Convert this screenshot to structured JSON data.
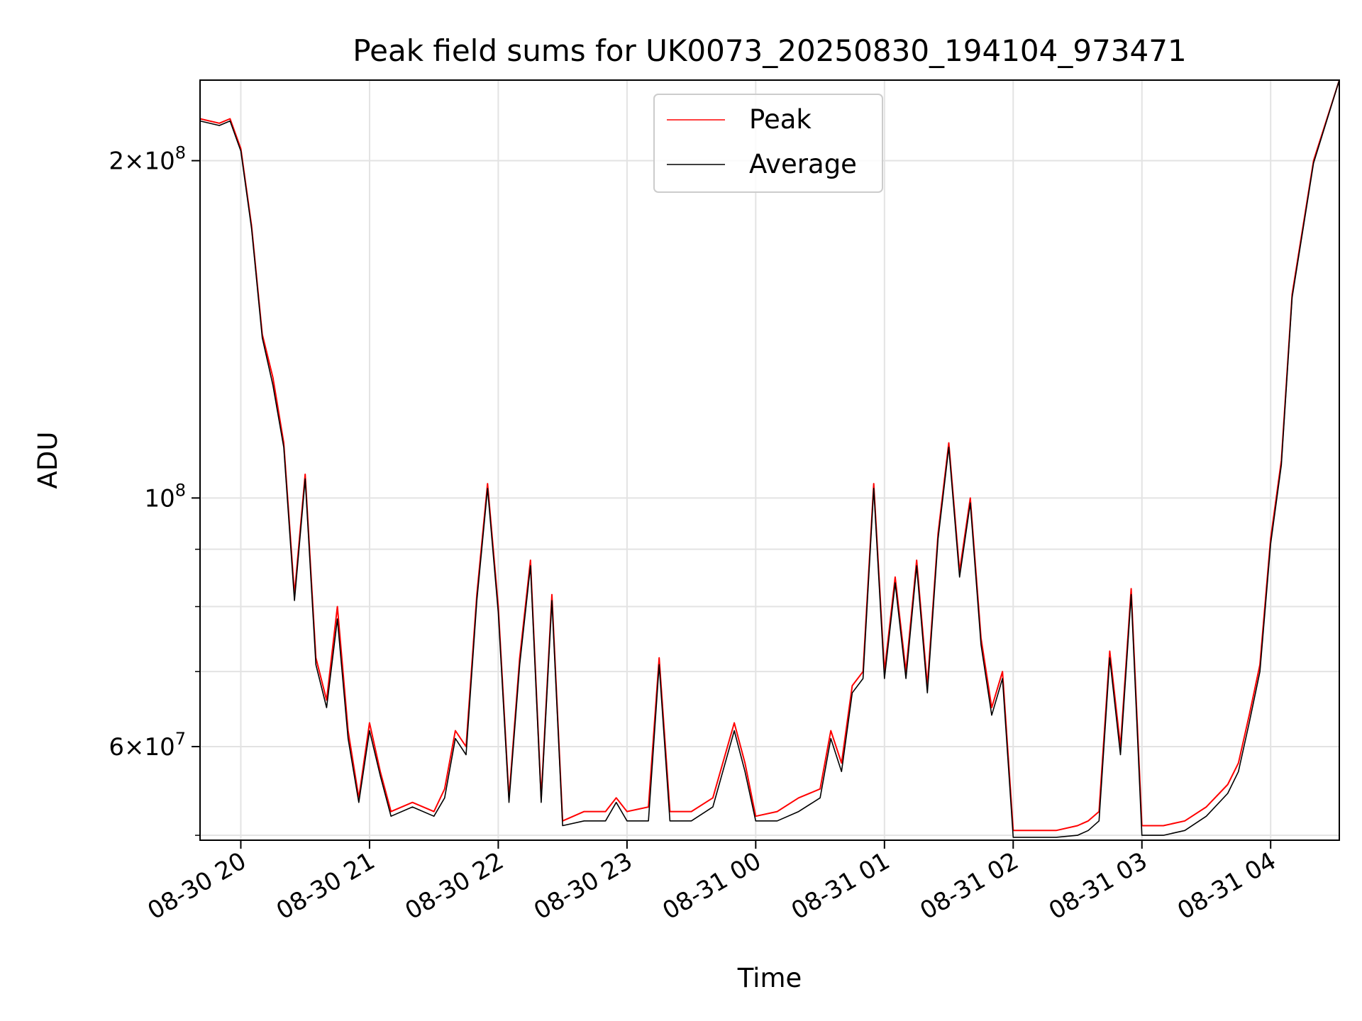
{
  "chart_data": {
    "type": "line",
    "title": "Peak field sums for UK0073_20250830_194104_973471",
    "xlabel": "Time",
    "ylabel": "ADU",
    "yscale": "log",
    "grid": true,
    "legend": {
      "placement": "upper center"
    },
    "x_range": [
      "2025-08-30 19:41",
      "2025-08-31 04:32"
    ],
    "ylim": [
      49500000,
      236000000
    ],
    "x_ticks": [
      {
        "label": "08-30 20",
        "time": "2025-08-30 20:00"
      },
      {
        "label": "08-30 21",
        "time": "2025-08-30 21:00"
      },
      {
        "label": "08-30 22",
        "time": "2025-08-30 22:00"
      },
      {
        "label": "08-30 23",
        "time": "2025-08-30 23:00"
      },
      {
        "label": "08-31 00",
        "time": "2025-08-31 00:00"
      },
      {
        "label": "08-31 01",
        "time": "2025-08-31 01:00"
      },
      {
        "label": "08-31 02",
        "time": "2025-08-31 02:00"
      },
      {
        "label": "08-31 03",
        "time": "2025-08-31 03:00"
      },
      {
        "label": "08-31 04",
        "time": "2025-08-31 04:00"
      }
    ],
    "y_major_ticks": [
      {
        "value": 60000000,
        "base": "6",
        "exp": "7"
      },
      {
        "value": 100000000,
        "base": "",
        "exp": "8"
      },
      {
        "value": 200000000,
        "base": "2",
        "exp": "8"
      }
    ],
    "y_minor_ticks": [
      50000000,
      70000000,
      80000000,
      90000000
    ],
    "series": [
      {
        "name": "Peak",
        "color": "#ff0000",
        "time": [
          "2025-08-30 19:41",
          "2025-08-30 19:50",
          "2025-08-30 19:55",
          "2025-08-30 20:00",
          "2025-08-30 20:05",
          "2025-08-30 20:10",
          "2025-08-30 20:15",
          "2025-08-30 20:20",
          "2025-08-30 20:25",
          "2025-08-30 20:30",
          "2025-08-30 20:35",
          "2025-08-30 20:40",
          "2025-08-30 20:45",
          "2025-08-30 20:50",
          "2025-08-30 20:55",
          "2025-08-30 21:00",
          "2025-08-30 21:05",
          "2025-08-30 21:10",
          "2025-08-30 21:20",
          "2025-08-30 21:30",
          "2025-08-30 21:35",
          "2025-08-30 21:40",
          "2025-08-30 21:45",
          "2025-08-30 21:50",
          "2025-08-30 21:55",
          "2025-08-30 22:00",
          "2025-08-30 22:05",
          "2025-08-30 22:10",
          "2025-08-30 22:15",
          "2025-08-30 22:20",
          "2025-08-30 22:25",
          "2025-08-30 22:30",
          "2025-08-30 22:40",
          "2025-08-30 22:50",
          "2025-08-30 22:55",
          "2025-08-30 23:00",
          "2025-08-30 23:10",
          "2025-08-30 23:15",
          "2025-08-30 23:20",
          "2025-08-30 23:30",
          "2025-08-30 23:40",
          "2025-08-30 23:50",
          "2025-08-30 23:55",
          "2025-08-31 00:00",
          "2025-08-31 00:10",
          "2025-08-31 00:20",
          "2025-08-31 00:30",
          "2025-08-31 00:35",
          "2025-08-31 00:40",
          "2025-08-31 00:45",
          "2025-08-31 00:50",
          "2025-08-31 00:55",
          "2025-08-31 01:00",
          "2025-08-31 01:05",
          "2025-08-31 01:10",
          "2025-08-31 01:15",
          "2025-08-31 01:20",
          "2025-08-31 01:25",
          "2025-08-31 01:30",
          "2025-08-31 01:35",
          "2025-08-31 01:40",
          "2025-08-31 01:45",
          "2025-08-31 01:50",
          "2025-08-31 01:55",
          "2025-08-31 02:00",
          "2025-08-31 02:10",
          "2025-08-31 02:20",
          "2025-08-31 02:30",
          "2025-08-31 02:35",
          "2025-08-31 02:40",
          "2025-08-31 02:45",
          "2025-08-31 02:50",
          "2025-08-31 02:55",
          "2025-08-31 03:00",
          "2025-08-31 03:10",
          "2025-08-31 03:20",
          "2025-08-31 03:30",
          "2025-08-31 03:40",
          "2025-08-31 03:45",
          "2025-08-31 03:50",
          "2025-08-31 03:55",
          "2025-08-31 04:00",
          "2025-08-31 04:05",
          "2025-08-31 04:10",
          "2025-08-31 04:20",
          "2025-08-31 04:32"
        ],
        "values": [
          218000000,
          216000000,
          218000000,
          205000000,
          175000000,
          140000000,
          128000000,
          112000000,
          82000000,
          105000000,
          72000000,
          66000000,
          80000000,
          62000000,
          54000000,
          63000000,
          57000000,
          52500000,
          53500000,
          52500000,
          55000000,
          62000000,
          60000000,
          82000000,
          103000000,
          80000000,
          54000000,
          72000000,
          88000000,
          54000000,
          82000000,
          51500000,
          52500000,
          52500000,
          54000000,
          52500000,
          53000000,
          72000000,
          52500000,
          52500000,
          54000000,
          63000000,
          58000000,
          52000000,
          52500000,
          54000000,
          55000000,
          62000000,
          58000000,
          68000000,
          70000000,
          103000000,
          70000000,
          85000000,
          70000000,
          88000000,
          68000000,
          93000000,
          112000000,
          86000000,
          100000000,
          75000000,
          65000000,
          70000000,
          50500000,
          50500000,
          50500000,
          51000000,
          51500000,
          52500000,
          73000000,
          60000000,
          83000000,
          51000000,
          51000000,
          51500000,
          53000000,
          55500000,
          58000000,
          64000000,
          71000000,
          92000000,
          108000000,
          152000000,
          200000000,
          236000000
        ]
      },
      {
        "name": "Average",
        "color": "#000000",
        "time": [
          "2025-08-30 19:41",
          "2025-08-30 19:50",
          "2025-08-30 19:55",
          "2025-08-30 20:00",
          "2025-08-30 20:05",
          "2025-08-30 20:10",
          "2025-08-30 20:15",
          "2025-08-30 20:20",
          "2025-08-30 20:25",
          "2025-08-30 20:30",
          "2025-08-30 20:35",
          "2025-08-30 20:40",
          "2025-08-30 20:45",
          "2025-08-30 20:50",
          "2025-08-30 20:55",
          "2025-08-30 21:00",
          "2025-08-30 21:05",
          "2025-08-30 21:10",
          "2025-08-30 21:20",
          "2025-08-30 21:30",
          "2025-08-30 21:35",
          "2025-08-30 21:40",
          "2025-08-30 21:45",
          "2025-08-30 21:50",
          "2025-08-30 21:55",
          "2025-08-30 22:00",
          "2025-08-30 22:05",
          "2025-08-30 22:10",
          "2025-08-30 22:15",
          "2025-08-30 22:20",
          "2025-08-30 22:25",
          "2025-08-30 22:30",
          "2025-08-30 22:40",
          "2025-08-30 22:50",
          "2025-08-30 22:55",
          "2025-08-30 23:00",
          "2025-08-30 23:10",
          "2025-08-30 23:15",
          "2025-08-30 23:20",
          "2025-08-30 23:30",
          "2025-08-30 23:40",
          "2025-08-30 23:50",
          "2025-08-30 23:55",
          "2025-08-31 00:00",
          "2025-08-31 00:10",
          "2025-08-31 00:20",
          "2025-08-31 00:30",
          "2025-08-31 00:35",
          "2025-08-31 00:40",
          "2025-08-31 00:45",
          "2025-08-31 00:50",
          "2025-08-31 00:55",
          "2025-08-31 01:00",
          "2025-08-31 01:05",
          "2025-08-31 01:10",
          "2025-08-31 01:15",
          "2025-08-31 01:20",
          "2025-08-31 01:25",
          "2025-08-31 01:30",
          "2025-08-31 01:35",
          "2025-08-31 01:40",
          "2025-08-31 01:45",
          "2025-08-31 01:50",
          "2025-08-31 01:55",
          "2025-08-31 02:00",
          "2025-08-31 02:10",
          "2025-08-31 02:20",
          "2025-08-31 02:30",
          "2025-08-31 02:35",
          "2025-08-31 02:40",
          "2025-08-31 02:45",
          "2025-08-31 02:50",
          "2025-08-31 02:55",
          "2025-08-31 03:00",
          "2025-08-31 03:10",
          "2025-08-31 03:20",
          "2025-08-31 03:30",
          "2025-08-31 03:40",
          "2025-08-31 03:45",
          "2025-08-31 03:50",
          "2025-08-31 03:55",
          "2025-08-31 04:00",
          "2025-08-31 04:05",
          "2025-08-31 04:10",
          "2025-08-31 04:20",
          "2025-08-31 04:32"
        ],
        "values": [
          217000000,
          215000000,
          217000000,
          204000000,
          174000000,
          139000000,
          126000000,
          111000000,
          81000000,
          104000000,
          71000000,
          65000000,
          78000000,
          61000000,
          53500000,
          62000000,
          56500000,
          52000000,
          53000000,
          52000000,
          54000000,
          61000000,
          59000000,
          81000000,
          102000000,
          79000000,
          53500000,
          71000000,
          87000000,
          53500000,
          81000000,
          51000000,
          51500000,
          51500000,
          53500000,
          51500000,
          51500000,
          71000000,
          51500000,
          51500000,
          53000000,
          62000000,
          57000000,
          51500000,
          51500000,
          52500000,
          54000000,
          61000000,
          57000000,
          67000000,
          69000000,
          102000000,
          69000000,
          84000000,
          69000000,
          87000000,
          67000000,
          92000000,
          111000000,
          85000000,
          99000000,
          74000000,
          64000000,
          69000000,
          49800000,
          49800000,
          49800000,
          50000000,
          50500000,
          51500000,
          72000000,
          59000000,
          82000000,
          50000000,
          50000000,
          50500000,
          52000000,
          54500000,
          57000000,
          63000000,
          70000000,
          91000000,
          107000000,
          151000000,
          199000000,
          236000000
        ]
      }
    ]
  }
}
